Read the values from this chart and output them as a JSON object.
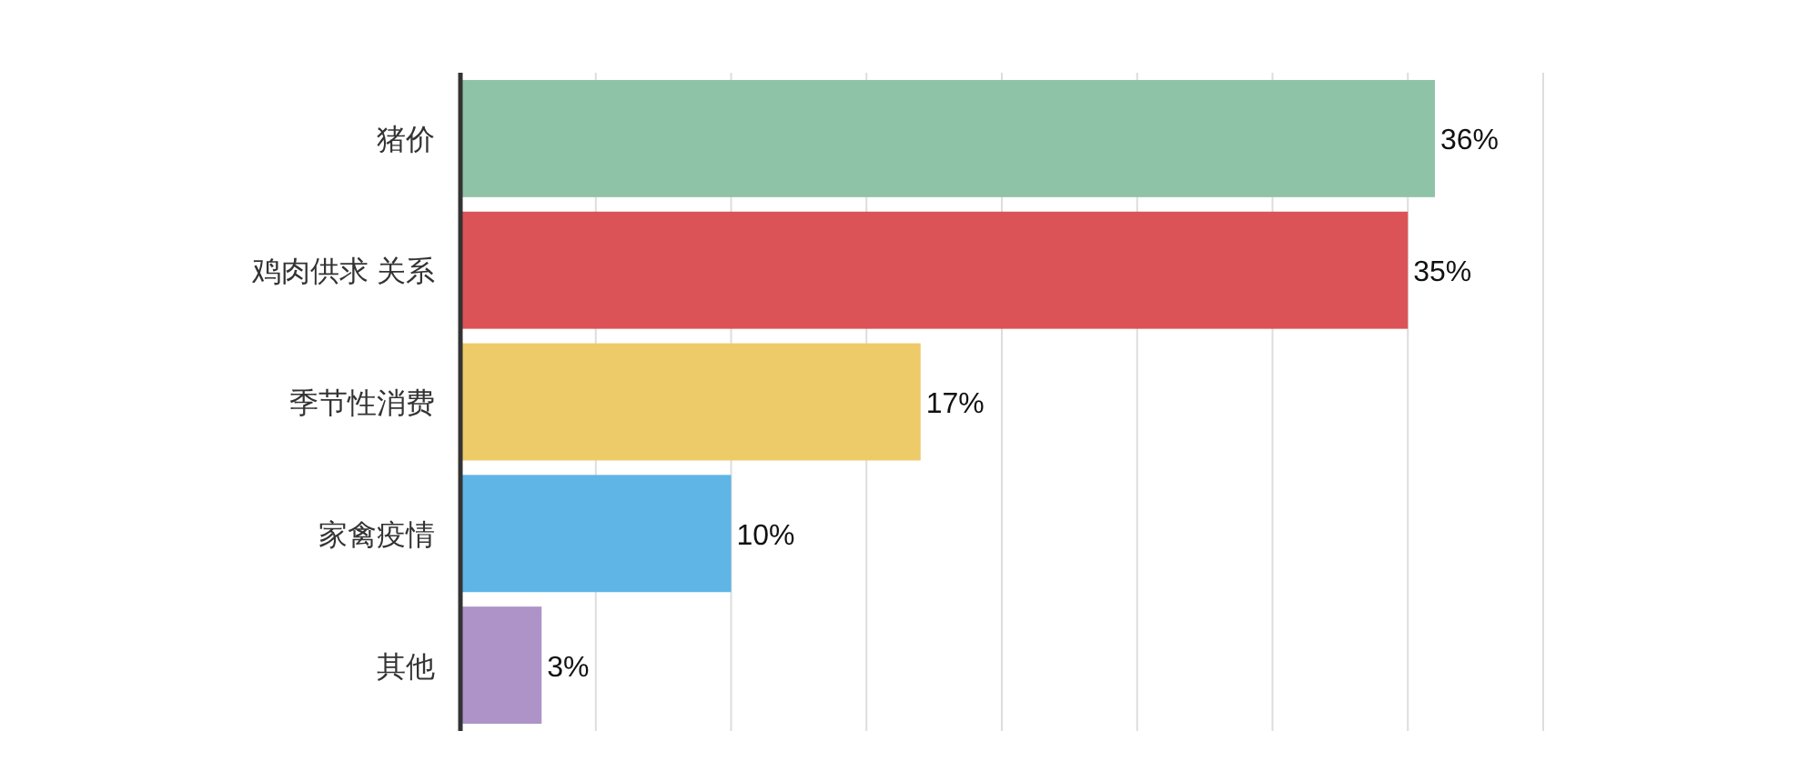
{
  "chart_data": {
    "type": "bar",
    "orientation": "horizontal",
    "categories": [
      "猪价",
      "鸡肉供求 关系",
      "季节性消费",
      "家禽疫情",
      "其他"
    ],
    "values": [
      36,
      35,
      17,
      10,
      3
    ],
    "colors": [
      "#8fc3a7",
      "#dc5357",
      "#eecb69",
      "#5fb5e6",
      "#ae93c9"
    ],
    "value_labels": [
      "36%",
      "35%",
      "17%",
      "10%",
      "3%"
    ],
    "xlim": [
      0,
      40
    ],
    "xticks": [
      {
        "value": 0,
        "label": null
      },
      {
        "value": 5,
        "label": null
      },
      {
        "value": 10,
        "label": null
      },
      {
        "value": 15,
        "label": null
      },
      {
        "value": 20,
        "label": null
      },
      {
        "value": 25,
        "label": null
      },
      {
        "value": 30,
        "label": null
      },
      {
        "value": 35,
        "label": null
      },
      {
        "value": 40,
        "label": null
      }
    ],
    "grid": "x",
    "tick_labels": "y"
  }
}
